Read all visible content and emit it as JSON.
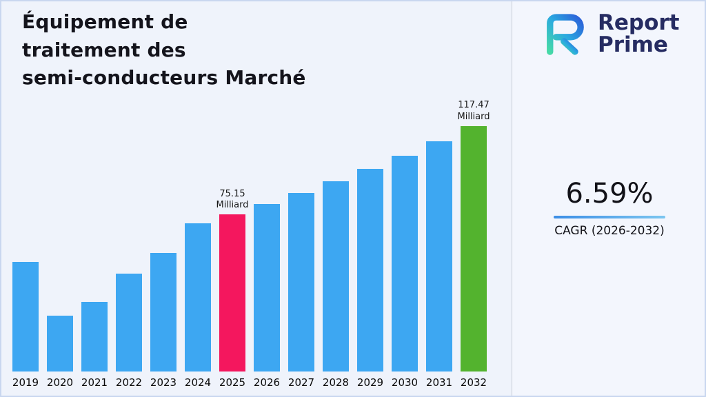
{
  "title": {
    "lines": [
      "Équipement de",
      "traitement des",
      "semi-conducteurs Marché"
    ]
  },
  "logo": {
    "name_line1": "Report",
    "name_line2": "Prime"
  },
  "cagr": {
    "value": "6.59%",
    "label": "CAGR (2026-2032)"
  },
  "chart_data": {
    "type": "bar",
    "title": "Équipement de traitement des semi-conducteurs Marché",
    "categories": [
      "2019",
      "2020",
      "2021",
      "2022",
      "2023",
      "2024",
      "2025",
      "2026",
      "2027",
      "2028",
      "2029",
      "2030",
      "2031",
      "2032"
    ],
    "values": [
      52.6,
      26.8,
      33.4,
      47.0,
      56.9,
      71.1,
      75.15,
      80.1,
      85.38,
      91.0,
      97.0,
      103.39,
      110.21,
      117.47
    ],
    "unit": "Milliard",
    "xlabel": "",
    "ylabel": "",
    "ylim": [
      0,
      125
    ],
    "grid": false,
    "legend": "none",
    "bar_color": "#3da7f2",
    "highlight_colors": {
      "2025": "#f4175e",
      "2032": "#53b32e"
    },
    "annotations": [
      {
        "category": "2025",
        "lines": [
          "75.15",
          "Milliard"
        ]
      },
      {
        "category": "2032",
        "lines": [
          "117.47",
          "Milliard"
        ]
      }
    ]
  }
}
